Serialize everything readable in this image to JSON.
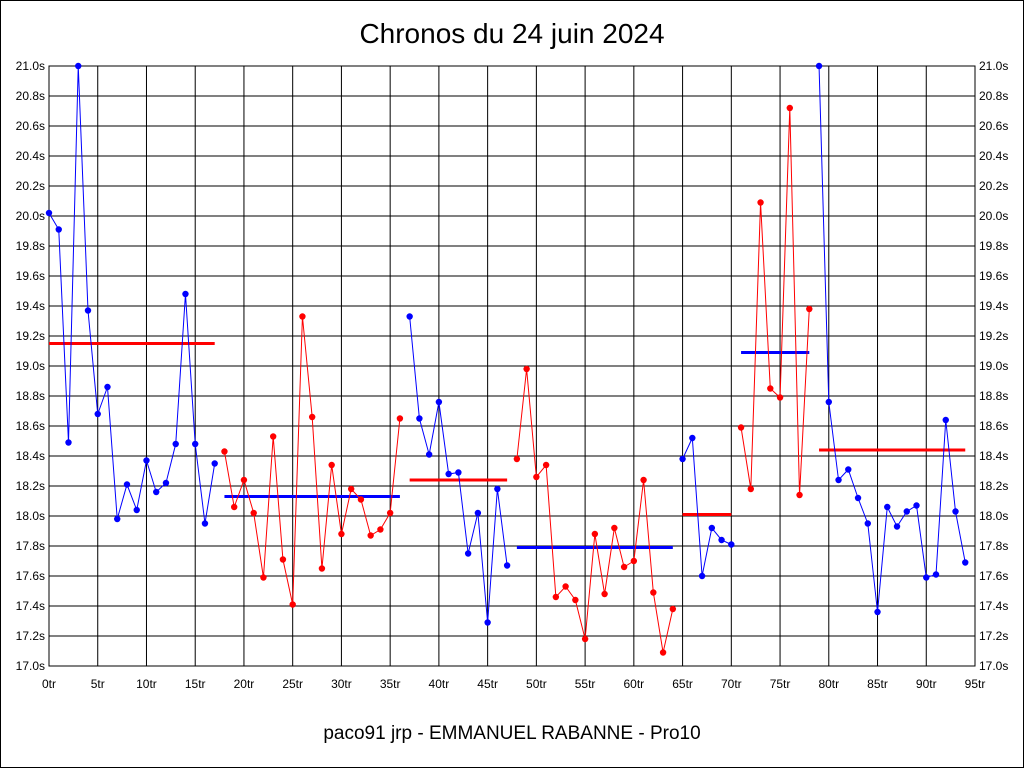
{
  "chart_data": {
    "type": "line",
    "title": "Chronos du 24 juin 2024",
    "footer": "paco91 jrp - EMMANUEL RABANNE - Pro10",
    "xlabel": "",
    "ylabel": "",
    "xlim": [
      0,
      95
    ],
    "ylim": [
      17.0,
      21.0
    ],
    "grid": true,
    "x_ticks": [
      0,
      5,
      10,
      15,
      20,
      25,
      30,
      35,
      40,
      45,
      50,
      55,
      60,
      65,
      70,
      75,
      80,
      85,
      90,
      95
    ],
    "x_tick_labels": [
      "0tr",
      "5tr",
      "10tr",
      "15tr",
      "20tr",
      "25tr",
      "30tr",
      "35tr",
      "40tr",
      "45tr",
      "50tr",
      "55tr",
      "60tr",
      "65tr",
      "70tr",
      "75tr",
      "80tr",
      "85tr",
      "90tr",
      "95tr"
    ],
    "y_ticks": [
      17.0,
      17.2,
      17.4,
      17.6,
      17.8,
      18.0,
      18.2,
      18.4,
      18.6,
      18.8,
      19.0,
      19.2,
      19.4,
      19.6,
      19.8,
      20.0,
      20.2,
      20.4,
      20.6,
      20.8,
      21.0
    ],
    "y_tick_labels": [
      "17.0s",
      "17.2s",
      "17.4s",
      "17.6s",
      "17.8s",
      "18.0s",
      "18.2s",
      "18.4s",
      "18.6s",
      "18.8s",
      "19.0s",
      "19.2s",
      "19.4s",
      "19.6s",
      "19.8s",
      "20.0s",
      "20.2s",
      "20.4s",
      "20.6s",
      "20.8s",
      "21.0s"
    ],
    "colors": {
      "blue": "#0000ff",
      "red": "#ff0000",
      "grid": "#000000"
    },
    "series": [
      {
        "color": "#0000ff",
        "x": [
          0,
          1,
          2,
          3,
          4,
          5,
          6,
          7,
          8,
          9,
          10,
          11,
          12,
          13,
          14,
          15,
          16,
          17
        ],
        "values": [
          20.02,
          19.91,
          18.49,
          21.0,
          19.37,
          18.68,
          18.86,
          17.98,
          18.21,
          18.04,
          18.37,
          18.16,
          18.22,
          18.48,
          19.48,
          18.48,
          17.95,
          18.35
        ]
      },
      {
        "color": "#ff0000",
        "x": [
          18,
          19,
          20,
          21,
          22,
          23,
          24,
          25,
          26,
          27,
          28,
          29,
          30,
          31,
          32,
          33,
          34,
          35,
          36
        ],
        "values": [
          18.43,
          18.06,
          18.24,
          18.02,
          17.59,
          18.53,
          17.71,
          17.41,
          19.33,
          18.66,
          17.65,
          18.34,
          17.88,
          18.18,
          18.11,
          17.87,
          17.91,
          18.02,
          18.65
        ]
      },
      {
        "color": "#0000ff",
        "x": [
          37,
          38,
          39,
          40,
          41,
          42,
          43,
          44,
          45,
          46,
          47
        ],
        "values": [
          19.33,
          18.65,
          18.41,
          18.76,
          18.28,
          18.29,
          17.75,
          18.02,
          17.29,
          18.18,
          17.67
        ]
      },
      {
        "color": "#ff0000",
        "x": [
          48,
          49,
          50,
          51,
          52,
          53,
          54,
          55,
          56,
          57,
          58,
          59,
          60,
          61,
          62,
          63,
          64
        ],
        "values": [
          18.38,
          18.98,
          18.26,
          18.34,
          17.46,
          17.53,
          17.44,
          17.18,
          17.88,
          17.48,
          17.92,
          17.66,
          17.7,
          18.24,
          17.49,
          17.09,
          17.38
        ]
      },
      {
        "color": "#0000ff",
        "x": [
          65,
          66,
          67,
          68,
          69,
          70
        ],
        "values": [
          18.38,
          18.52,
          17.6,
          17.92,
          17.84,
          17.81
        ]
      },
      {
        "color": "#ff0000",
        "x": [
          71,
          72,
          73,
          74,
          75,
          76,
          77,
          78
        ],
        "values": [
          18.59,
          18.18,
          20.09,
          18.85,
          18.79,
          20.72,
          18.14,
          19.38
        ]
      },
      {
        "color": "#0000ff",
        "x": [
          79,
          80,
          81,
          82,
          83,
          84,
          85,
          86,
          87,
          88,
          89,
          90,
          91,
          92,
          93,
          94
        ],
        "values": [
          21.0,
          18.76,
          18.24,
          18.31,
          18.12,
          17.95,
          17.36,
          18.06,
          17.93,
          18.03,
          18.07,
          17.59,
          17.61,
          18.64,
          18.03,
          17.69
        ]
      }
    ],
    "averages": [
      {
        "color": "#ff0000",
        "x": [
          0,
          17
        ],
        "value": 19.15
      },
      {
        "color": "#0000ff",
        "x": [
          18,
          36
        ],
        "value": 18.13
      },
      {
        "color": "#ff0000",
        "x": [
          37,
          47
        ],
        "value": 18.24
      },
      {
        "color": "#0000ff",
        "x": [
          48,
          64
        ],
        "value": 17.79
      },
      {
        "color": "#ff0000",
        "x": [
          65,
          70
        ],
        "value": 18.01
      },
      {
        "color": "#0000ff",
        "x": [
          71,
          78
        ],
        "value": 19.09
      },
      {
        "color": "#ff0000",
        "x": [
          79,
          94
        ],
        "value": 18.44
      }
    ]
  }
}
